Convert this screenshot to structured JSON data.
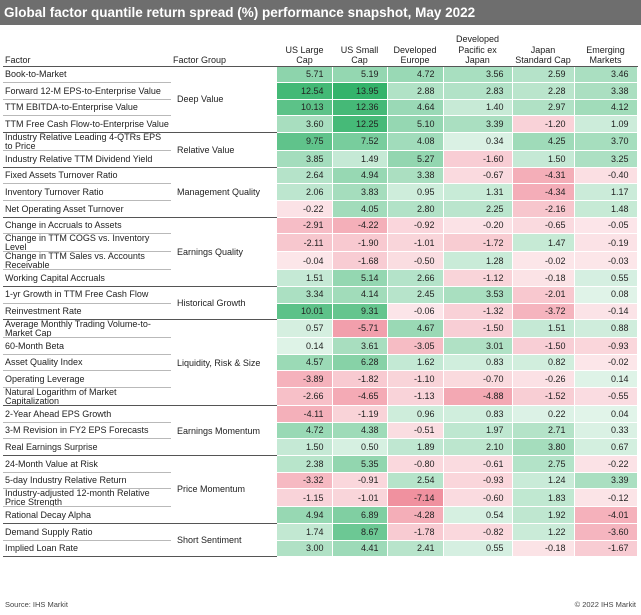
{
  "title": "Global factor quantile return spread (%) performance snapshot, May 2022",
  "headers": {
    "factor": "Factor",
    "factor_group": "Factor Group",
    "columns": [
      "US Large Cap",
      "US Small Cap",
      "Developed Europe",
      "Developed Pacific ex Japan",
      "Japan Standard Cap",
      "Emerging Markets"
    ]
  },
  "colors": {
    "positive": "#34b36b",
    "negative": "#e8546a",
    "neutral": "#ffffff"
  },
  "groups": [
    {
      "name": "Deep Value",
      "rows": [
        {
          "factor": "Book-to-Market",
          "values": [
            "5.71",
            "5.19",
            "4.72",
            "3.56",
            "2.59",
            "3.46"
          ]
        },
        {
          "factor": "Forward 12-M EPS-to-Enterprise Value",
          "values": [
            "12.54",
            "13.95",
            "2.88",
            "2.83",
            "2.28",
            "3.38"
          ]
        },
        {
          "factor": "TTM EBITDA-to-Enterprise Value",
          "values": [
            "10.13",
            "12.36",
            "4.64",
            "1.40",
            "2.97",
            "4.12"
          ]
        },
        {
          "factor": "TTM Free Cash Flow-to-Enterprise Value",
          "values": [
            "3.60",
            "12.25",
            "5.10",
            "3.39",
            "-1.20",
            "1.09"
          ]
        }
      ]
    },
    {
      "name": "Relative Value",
      "rows": [
        {
          "factor": "Industry Relative Leading 4-QTRs EPS to Price",
          "values": [
            "9.75",
            "7.52",
            "4.08",
            "0.34",
            "4.25",
            "3.70"
          ]
        },
        {
          "factor": "Industry Relative TTM Dividend Yield",
          "values": [
            "3.85",
            "1.49",
            "5.27",
            "-1.60",
            "1.50",
            "3.25"
          ]
        }
      ]
    },
    {
      "name": "Management Quality",
      "rows": [
        {
          "factor": "Fixed Assets Turnover Ratio",
          "values": [
            "2.64",
            "4.94",
            "3.38",
            "-0.67",
            "-4.31",
            "-0.40"
          ]
        },
        {
          "factor": "Inventory Turnover Ratio",
          "values": [
            "2.06",
            "3.83",
            "0.95",
            "1.31",
            "-4.34",
            "1.17"
          ]
        },
        {
          "factor": "Net Operating Asset Turnover",
          "values": [
            "-0.22",
            "4.05",
            "2.80",
            "2.25",
            "-2.16",
            "1.48"
          ]
        }
      ]
    },
    {
      "name": "Earnings Quality",
      "rows": [
        {
          "factor": "Change in Accruals to Assets",
          "values": [
            "-2.91",
            "-4.22",
            "-0.92",
            "-0.20",
            "-0.65",
            "-0.05"
          ]
        },
        {
          "factor": "Change in TTM COGS vs. Inventory Level",
          "values": [
            "-2.11",
            "-1.90",
            "-1.01",
            "-1.72",
            "1.47",
            "-0.19"
          ]
        },
        {
          "factor": "Change in TTM Sales vs. Accounts Receivable",
          "values": [
            "-0.04",
            "-1.68",
            "-0.50",
            "1.28",
            "-0.02",
            "-0.03"
          ]
        },
        {
          "factor": "Working Capital Accruals",
          "values": [
            "1.51",
            "5.14",
            "2.66",
            "-1.12",
            "-0.18",
            "0.55"
          ]
        }
      ]
    },
    {
      "name": "Historical Growth",
      "rows": [
        {
          "factor": "1-yr Growth in TTM Free Cash Flow",
          "values": [
            "3.34",
            "4.14",
            "2.45",
            "3.53",
            "-2.01",
            "0.08"
          ]
        },
        {
          "factor": "Reinvestment Rate",
          "values": [
            "10.01",
            "9.31",
            "-0.06",
            "-1.32",
            "-3.72",
            "-0.14"
          ]
        }
      ]
    },
    {
      "name": "Liquidity, Risk & Size",
      "rows": [
        {
          "factor": "Average Monthly Trading Volume-to-Market Cap",
          "values": [
            "0.57",
            "-5.71",
            "4.67",
            "-1.50",
            "1.51",
            "0.88"
          ]
        },
        {
          "factor": "60-Month Beta",
          "values": [
            "0.14",
            "3.61",
            "-3.05",
            "3.01",
            "-1.50",
            "-0.93"
          ]
        },
        {
          "factor": "Asset Quality Index",
          "values": [
            "4.57",
            "6.28",
            "1.62",
            "0.83",
            "0.82",
            "-0.02"
          ]
        },
        {
          "factor": "Operating Leverage",
          "values": [
            "-3.89",
            "-1.82",
            "-1.10",
            "-0.70",
            "-0.26",
            "0.14"
          ]
        },
        {
          "factor": "Natural Logarithm of Market Capitalization",
          "values": [
            "-2.66",
            "-4.65",
            "-1.13",
            "-4.88",
            "-1.52",
            "-0.55"
          ]
        }
      ]
    },
    {
      "name": "Earnings Momentum",
      "rows": [
        {
          "factor": "2-Year Ahead EPS Growth",
          "values": [
            "-4.11",
            "-1.19",
            "0.96",
            "0.83",
            "0.22",
            "0.04"
          ]
        },
        {
          "factor": "3-M Revision in FY2 EPS Forecasts",
          "values": [
            "4.72",
            "4.38",
            "-0.51",
            "1.97",
            "2.71",
            "0.33"
          ]
        },
        {
          "factor": "Real Earnings Surprise",
          "values": [
            "1.50",
            "0.50",
            "1.89",
            "2.10",
            "3.80",
            "0.67"
          ]
        }
      ]
    },
    {
      "name": "Price Momentum",
      "rows": [
        {
          "factor": "24-Month Value at Risk",
          "values": [
            "2.38",
            "5.35",
            "-0.80",
            "-0.61",
            "2.75",
            "-0.22"
          ]
        },
        {
          "factor": "5-day Industry Relative Return",
          "values": [
            "-3.32",
            "-0.91",
            "2.54",
            "-0.93",
            "1.24",
            "3.39"
          ]
        },
        {
          "factor": "Industry-adjusted 12-month Relative Price Strength",
          "values": [
            "-1.15",
            "-1.01",
            "-7.14",
            "-0.60",
            "1.83",
            "-0.12"
          ]
        },
        {
          "factor": "Rational Decay Alpha",
          "values": [
            "4.94",
            "6.89",
            "-4.28",
            "0.54",
            "1.92",
            "-4.01"
          ]
        }
      ]
    },
    {
      "name": "Short Sentiment",
      "rows": [
        {
          "factor": "Demand Supply Ratio",
          "values": [
            "1.74",
            "8.67",
            "-1.78",
            "-0.82",
            "1.22",
            "-3.60"
          ]
        },
        {
          "factor": "Implied Loan Rate",
          "values": [
            "3.00",
            "4.41",
            "2.41",
            "0.55",
            "-0.18",
            "-1.67"
          ]
        }
      ]
    }
  ],
  "footer": {
    "source": "Source: IHS Markit",
    "copyright": "© 2022 IHS Markit"
  }
}
